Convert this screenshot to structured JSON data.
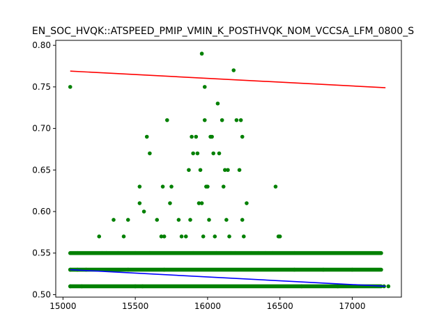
{
  "chart_data": {
    "type": "scatter",
    "title": "EN_SOC_HVQK::ATSPEED_PMIP_VMIN_K_POSTHVQK_NOM_VCCSA_LFM_0800_S",
    "xlabel": "",
    "ylabel": "",
    "xlim": [
      14950,
      17340
    ],
    "ylim": [
      0.497,
      0.806
    ],
    "x_ticks": [
      "15000",
      "15500",
      "16000",
      "16500",
      "17000"
    ],
    "y_ticks": [
      "0.50",
      "0.55",
      "0.60",
      "0.65",
      "0.70",
      "0.75",
      "0.80"
    ],
    "grid": false,
    "legend": "none",
    "colors": {
      "points": "#008000",
      "upper_line": "#ff0000",
      "lower_line": "#0000ff"
    },
    "series": [
      {
        "kind": "points",
        "points": [
          [
            15050,
            0.75
          ],
          [
            15050,
            0.53
          ],
          [
            15050,
            0.51
          ],
          [
            15100,
            0.55
          ],
          [
            15100,
            0.53
          ],
          [
            15130,
            0.51
          ],
          [
            15160,
            0.53
          ],
          [
            15250,
            0.57
          ],
          [
            15270,
            0.55
          ],
          [
            15300,
            0.55
          ],
          [
            15350,
            0.59
          ],
          [
            15380,
            0.55
          ],
          [
            15420,
            0.57
          ],
          [
            15450,
            0.59
          ],
          [
            15500,
            0.55
          ],
          [
            15530,
            0.61
          ],
          [
            15530,
            0.63
          ],
          [
            15560,
            0.6
          ],
          [
            15580,
            0.69
          ],
          [
            15600,
            0.67
          ],
          [
            15600,
            0.55
          ],
          [
            15650,
            0.59
          ],
          [
            15680,
            0.57
          ],
          [
            15690,
            0.63
          ],
          [
            15700,
            0.57
          ],
          [
            15720,
            0.71
          ],
          [
            15740,
            0.61
          ],
          [
            15750,
            0.63
          ],
          [
            15800,
            0.59
          ],
          [
            15820,
            0.57
          ],
          [
            15850,
            0.57
          ],
          [
            15870,
            0.65
          ],
          [
            15880,
            0.59
          ],
          [
            15890,
            0.69
          ],
          [
            15900,
            0.67
          ],
          [
            15900,
            0.55
          ],
          [
            15920,
            0.69
          ],
          [
            15930,
            0.67
          ],
          [
            15940,
            0.61
          ],
          [
            15950,
            0.65
          ],
          [
            15960,
            0.79
          ],
          [
            15960,
            0.61
          ],
          [
            15970,
            0.57
          ],
          [
            15980,
            0.71
          ],
          [
            15980,
            0.75
          ],
          [
            15990,
            0.63
          ],
          [
            16000,
            0.63
          ],
          [
            16010,
            0.59
          ],
          [
            16020,
            0.69
          ],
          [
            16030,
            0.69
          ],
          [
            16040,
            0.67
          ],
          [
            16050,
            0.57
          ],
          [
            16060,
            0.55
          ],
          [
            16070,
            0.73
          ],
          [
            16080,
            0.67
          ],
          [
            16100,
            0.71
          ],
          [
            16110,
            0.63
          ],
          [
            16120,
            0.65
          ],
          [
            16130,
            0.59
          ],
          [
            16140,
            0.65
          ],
          [
            16150,
            0.57
          ],
          [
            16160,
            0.55
          ],
          [
            16180,
            0.77
          ],
          [
            16190,
            0.55
          ],
          [
            16200,
            0.71
          ],
          [
            16220,
            0.65
          ],
          [
            16230,
            0.71
          ],
          [
            16240,
            0.69
          ],
          [
            16240,
            0.59
          ],
          [
            16250,
            0.57
          ],
          [
            16270,
            0.61
          ],
          [
            16300,
            0.55
          ],
          [
            16350,
            0.55
          ],
          [
            16400,
            0.55
          ],
          [
            16450,
            0.55
          ],
          [
            16470,
            0.63
          ],
          [
            16490,
            0.57
          ],
          [
            16500,
            0.57
          ],
          [
            16600,
            0.55
          ],
          [
            17000,
            0.53
          ],
          [
            17220,
            0.51
          ],
          [
            17250,
            0.51
          ],
          [
            15450,
            0.53
          ],
          [
            15500,
            0.51
          ],
          [
            15550,
            0.51
          ],
          [
            15700,
            0.53
          ],
          [
            16600,
            0.53
          ],
          [
            16650,
            0.51
          ],
          [
            16800,
            0.53
          ],
          [
            16900,
            0.51
          ]
        ]
      },
      {
        "kind": "band",
        "values": [
          0.51,
          0.53,
          0.55
        ],
        "x_range": [
          15050,
          17200
        ]
      },
      {
        "kind": "line",
        "color_key": "upper_line",
        "points": [
          [
            15050,
            0.769
          ],
          [
            17230,
            0.749
          ]
        ]
      },
      {
        "kind": "line",
        "color_key": "lower_line",
        "points": [
          [
            15050,
            0.53
          ],
          [
            17230,
            0.51
          ]
        ]
      }
    ]
  }
}
